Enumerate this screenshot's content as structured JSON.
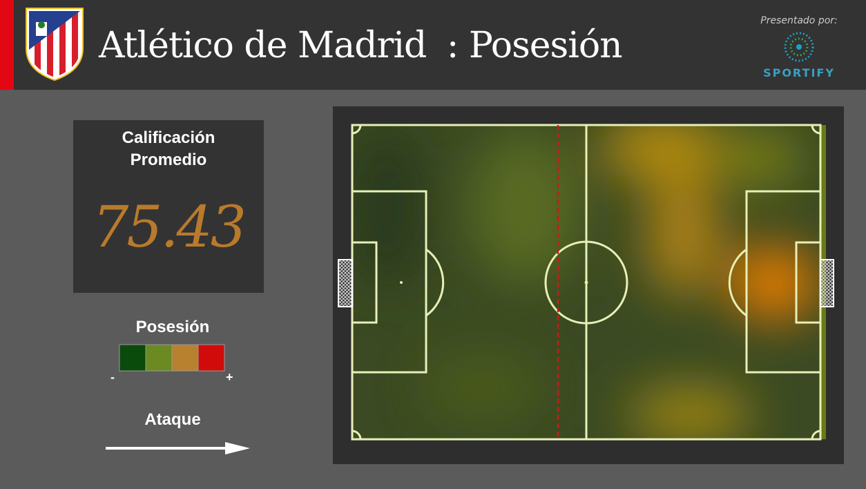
{
  "header": {
    "title": "Atlético de Madrid",
    "subtitle": ": Posesión",
    "sponsor_label": "Presentado por:",
    "sponsor": "SPORTIFY"
  },
  "rating": {
    "label_lines": [
      "Calificación",
      "Promedio"
    ],
    "value": "75.43"
  },
  "legend": {
    "title": "Posesión",
    "low": "-",
    "high": "+"
  },
  "direction": {
    "label": "Ataque"
  }
}
